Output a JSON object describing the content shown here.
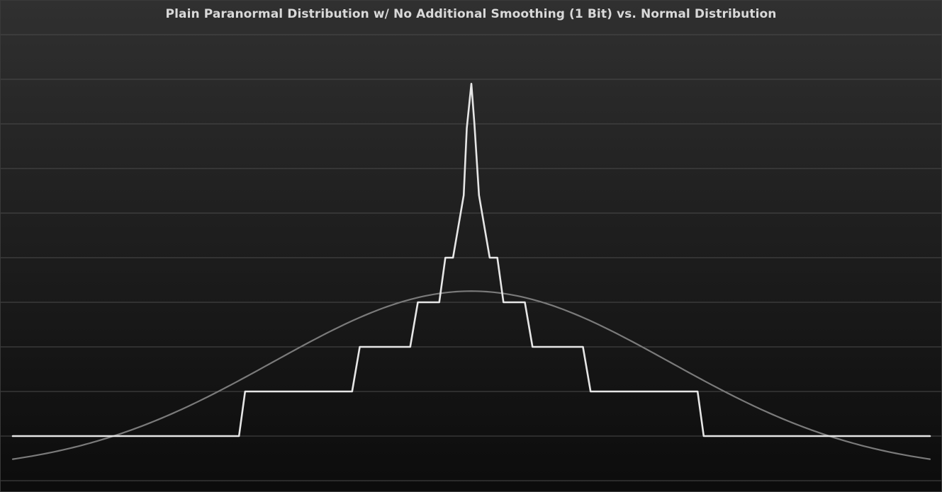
{
  "chart_data": {
    "type": "line",
    "title": "Plain Paranormal Distribution w/ No Additional Smoothing (1 Bit) vs. Normal Distribution",
    "xlabel": "",
    "ylabel": "",
    "xlim": [
      -15,
      15
    ],
    "ylim": [
      -1,
      9
    ],
    "grid": true,
    "legend": "none",
    "colors": {
      "paranormal": "#e6e6e6",
      "normal": "#7a7a7a",
      "grid": "#4a4a4a",
      "title": "#d9d9d9"
    },
    "series": [
      {
        "key": "paranormal",
        "points": [
          [
            -15,
            0
          ],
          [
            -7.6,
            0
          ],
          [
            -7.4,
            1
          ],
          [
            -3.9,
            1
          ],
          [
            -3.65,
            2
          ],
          [
            -2.0,
            2
          ],
          [
            -1.75,
            3
          ],
          [
            -1.05,
            3
          ],
          [
            -0.85,
            4
          ],
          [
            -0.6,
            4
          ],
          [
            -0.25,
            5.4
          ],
          [
            -0.15,
            6.9
          ],
          [
            0.0,
            7.9
          ],
          [
            0.1,
            7.0
          ],
          [
            0.25,
            5.4
          ],
          [
            0.6,
            4
          ],
          [
            0.85,
            4
          ],
          [
            1.05,
            3
          ],
          [
            1.75,
            3
          ],
          [
            2.0,
            2
          ],
          [
            3.65,
            2
          ],
          [
            3.9,
            1
          ],
          [
            7.4,
            1
          ],
          [
            7.6,
            0
          ],
          [
            15,
            0
          ]
        ]
      },
      {
        "key": "normal",
        "function": "gaussian",
        "mean": 0,
        "stddev": 6.5,
        "peak": 3.25,
        "baseline": -0.8,
        "samples": 241
      }
    ]
  }
}
